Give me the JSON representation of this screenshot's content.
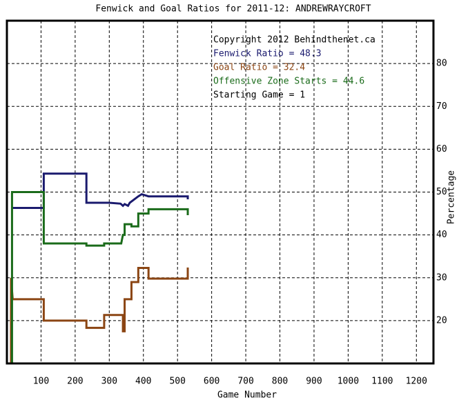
{
  "chart_data": {
    "type": "line",
    "title": "Fenwick and Goal Ratios for 2011-12: ANDREWRAYCROFT",
    "xlabel": "Game Number",
    "ylabel": "Percentage",
    "annotations": [
      "Copyright 2012 Behindthenet.ca",
      "Starting Game = 1"
    ],
    "xlim": [
      0,
      1250
    ],
    "ylim": [
      10,
      90
    ],
    "xticks": [
      100,
      200,
      300,
      400,
      500,
      600,
      700,
      800,
      900,
      1000,
      1100,
      1200
    ],
    "yticks": [
      20,
      30,
      40,
      50,
      60,
      70,
      80
    ],
    "grid": true,
    "series": [
      {
        "name": "Fenwick Ratio = 48.3",
        "color": "#1a1a6e",
        "x": [
          17,
          108,
          108,
          233,
          233,
          300,
          333,
          340,
          345,
          355,
          360,
          385,
          395,
          415,
          530,
          530
        ],
        "values": [
          46.3,
          46.3,
          54.3,
          54.3,
          47.5,
          47.5,
          47.3,
          46.8,
          47.2,
          46.8,
          47.5,
          49,
          49.5,
          49,
          49,
          48.3
        ]
      },
      {
        "name": "Goal Ratio = 32.4",
        "color": "#8b4513",
        "x": [
          12,
          12,
          17,
          108,
          108,
          233,
          233,
          285,
          285,
          340,
          340,
          345,
          345,
          365,
          365,
          385,
          385,
          415,
          415,
          530,
          530
        ],
        "values": [
          10,
          30,
          25,
          25,
          20,
          20,
          18.3,
          18.3,
          21.3,
          21.3,
          17.5,
          17.5,
          25,
          25,
          29,
          29,
          32.3,
          32.3,
          29.8,
          29.8,
          32.4
        ]
      },
      {
        "name": "Offensive Zone Starts = 44.6",
        "color": "#1a6b1a",
        "x": [
          15,
          15,
          108,
          108,
          233,
          233,
          285,
          285,
          335,
          340,
          345,
          345,
          365,
          365,
          385,
          385,
          415,
          415,
          530,
          530
        ],
        "values": [
          10,
          50,
          50,
          38,
          38,
          37.5,
          37.5,
          38,
          38,
          40,
          40,
          42.5,
          42.5,
          42,
          42,
          45,
          45,
          46,
          46,
          44.6
        ]
      }
    ]
  }
}
